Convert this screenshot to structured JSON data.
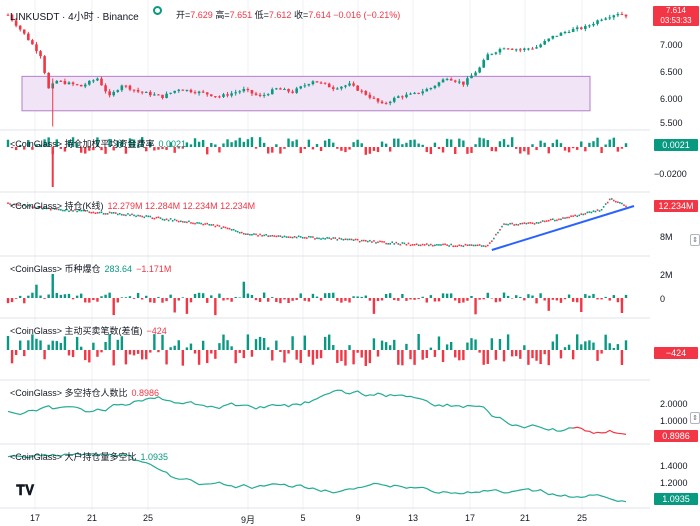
{
  "header": {
    "symbol": "LINKUSDT · 4小时 · Binance",
    "open_label": "开=",
    "open": "7.629",
    "high_label": "高=",
    "high": "7.651",
    "low_label": "低=",
    "low": "7.612",
    "close_label": "收=",
    "close": "7.614",
    "change": "−0.016 (−0.21%)"
  },
  "price_badge": {
    "price": "7.614",
    "countdown": "03:53:33"
  },
  "colors": {
    "up": "#089981",
    "down": "#f23645",
    "line": "#22ab94",
    "trend": "#2962ff",
    "box_fill": "#f1e4f6",
    "box_stroke": "#b57fc9",
    "grid": "#eef0f3"
  },
  "x_axis": {
    "ticks": [
      "17",
      "21",
      "25",
      "9月",
      "5",
      "9",
      "13",
      "17",
      "21",
      "25"
    ]
  },
  "expand_icon": "chevron-expand-icon",
  "chart_data": [
    {
      "type": "candlestick",
      "pane": "price",
      "ylim": [
        5.45,
        7.75
      ],
      "y_ticks": [
        "7.000",
        "6.500",
        "6.000",
        "5.500"
      ],
      "consolidation_box": {
        "y_top": 6.44,
        "y_bottom": 5.78
      },
      "series": [
        {
          "name": "LINKUSDT",
          "close_path": [
            [
              0,
              7.62
            ],
            [
              4,
              7.25
            ],
            [
              8,
              6.85
            ],
            [
              10,
              6.2
            ],
            [
              12,
              6.35
            ],
            [
              18,
              6.25
            ],
            [
              22,
              6.4
            ],
            [
              25,
              6.05
            ],
            [
              28,
              6.28
            ],
            [
              32,
              6.15
            ],
            [
              38,
              6.05
            ],
            [
              42,
              6.2
            ],
            [
              48,
              6.12
            ],
            [
              52,
              6.05
            ],
            [
              58,
              6.18
            ],
            [
              62,
              6.05
            ],
            [
              66,
              6.2
            ],
            [
              70,
              6.14
            ],
            [
              75,
              6.36
            ],
            [
              80,
              6.22
            ],
            [
              84,
              6.28
            ],
            [
              88,
              6.1
            ],
            [
              92,
              5.9
            ],
            [
              96,
              6.05
            ],
            [
              100,
              6.1
            ],
            [
              104,
              6.22
            ],
            [
              108,
              6.42
            ],
            [
              112,
              6.3
            ],
            [
              116,
              6.6
            ],
            [
              118,
              6.85
            ],
            [
              122,
              7.0
            ],
            [
              126,
              6.95
            ],
            [
              130,
              7.0
            ],
            [
              134,
              7.2
            ],
            [
              138,
              7.32
            ],
            [
              142,
              7.38
            ],
            [
              146,
              7.55
            ],
            [
              150,
              7.65
            ],
            [
              152,
              7.61
            ]
          ]
        }
      ],
      "last_value": "7.614"
    },
    {
      "type": "bar",
      "pane": "持仓加权平均资金费率",
      "title": "<CoinGlass> 持仓加权平均资金费率",
      "value": "0.0021",
      "y_ticks": [
        "−0.0200"
      ],
      "last_value": "0.0021"
    },
    {
      "type": "line",
      "pane": "持仓(K线)",
      "title": "<CoinGlass> 持仓(K线)",
      "values_text": "12.279M 12.284M 12.234M 12.234M",
      "y_ticks": [
        "8M"
      ],
      "last_value": "12.234M",
      "trendline": true
    },
    {
      "type": "bar",
      "pane": "币种爆仓",
      "title": "<CoinGlass> 币种爆仓",
      "values_text": [
        "283.64",
        "−1.171M"
      ],
      "y_ticks": [
        "2M",
        "0"
      ]
    },
    {
      "type": "bar",
      "pane": "主动买卖笔数(差值)",
      "title": "<CoinGlass> 主动买卖笔数(差值)",
      "value": "−424",
      "last_value": "−424"
    },
    {
      "type": "line",
      "pane": "多空持仓人数比",
      "title": "<CoinGlass> 多空持仓人数比",
      "value": "0.8986",
      "y_ticks": [
        "2.0000",
        "1.0000"
      ],
      "last_value": "0.8986"
    },
    {
      "type": "line",
      "pane": "大户持仓量多空比",
      "title": "<CoinGlass> 大户持仓量多空比",
      "value": "1.0935",
      "y_ticks": [
        "1.4000",
        "1.2000"
      ],
      "last_value": "1.0935"
    }
  ]
}
